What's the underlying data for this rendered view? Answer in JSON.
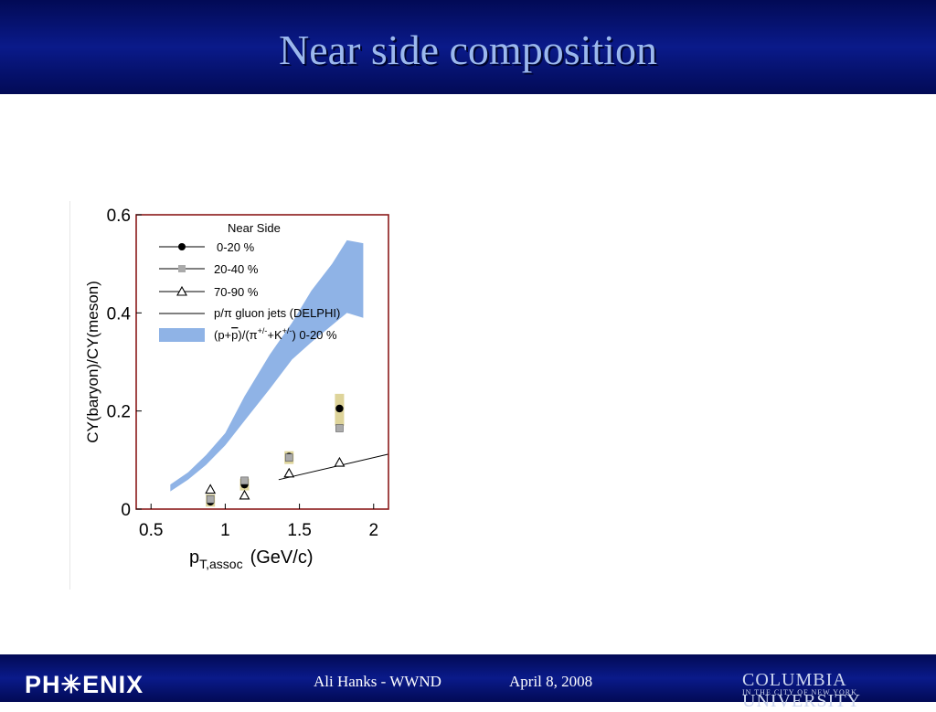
{
  "slide": {
    "title": "Near side composition",
    "footer_author": "Ali Hanks - WWND",
    "footer_date": "April 8, 2008",
    "logo_left": "PH✳ENIX",
    "logo_right": "COLUMBIA UNIVERSITY",
    "logo_right_sub": "IN THE CITY OF NEW YORK",
    "colors": {
      "bar": "#0a1a8a",
      "title_text": "#9bb8ee",
      "band": "#8fb3e6",
      "error_box": "#d8cc88",
      "frame": "#8b1a1a"
    }
  },
  "chart_data": {
    "type": "scatter",
    "title": "",
    "xlabel_main": "p",
    "xlabel_sub": "T,assoc",
    "xlabel_unit": "(GeV/c)",
    "ylabel": "CY(baryon)/CY(meson)",
    "xlim": [
      0.4,
      2.1
    ],
    "ylim": [
      0,
      0.6
    ],
    "x_ticks": [
      "0.5",
      "1",
      "1.5",
      "2"
    ],
    "y_ticks": [
      "0",
      "0.2",
      "0.4",
      "0.6"
    ],
    "legend_title": "Near Side",
    "legend_position": "top-left",
    "series": [
      {
        "name": "0-20 %",
        "marker": "filled-circle",
        "color": "#000000",
        "x": [
          0.9,
          1.13,
          1.43,
          1.77
        ],
        "y": [
          0.015,
          0.05,
          0.107,
          0.205
        ],
        "err_lo": [
          0.005,
          0.038,
          0.092,
          0.17
        ],
        "err_hi": [
          0.03,
          0.062,
          0.118,
          0.235
        ]
      },
      {
        "name": "20-40 %",
        "marker": "gray-square",
        "color": "#aaaaaa",
        "x": [
          0.9,
          1.13,
          1.43,
          1.77
        ],
        "y": [
          0.02,
          0.058,
          0.105,
          0.165
        ],
        "err_lo": [
          0.01,
          0.048,
          0.095,
          0.15
        ],
        "err_hi": [
          0.03,
          0.068,
          0.115,
          0.18
        ]
      },
      {
        "name": "70-90 %",
        "marker": "open-triangle",
        "color": "#000000",
        "x": [
          0.9,
          1.13,
          1.43,
          1.77
        ],
        "y": [
          0.04,
          0.028,
          0.073,
          0.095
        ],
        "err_lo": [
          0.03,
          0.018,
          0.058,
          0.085
        ],
        "err_hi": [
          0.05,
          0.038,
          0.088,
          0.105
        ]
      },
      {
        "name": "p/π gluon jets (DELPHI)",
        "type": "line",
        "color": "#000000",
        "x": [
          1.36,
          2.1
        ],
        "y": [
          0.06,
          0.112
        ]
      },
      {
        "name_parts": [
          "(p+",
          "p",
          ")/(π",
          "+/-",
          "+K",
          "+/-",
          ") 0-20 %"
        ],
        "type": "band",
        "color": "#8fb3e6",
        "x": [
          0.63,
          0.75,
          0.87,
          1.0,
          1.13,
          1.3,
          1.45,
          1.58,
          1.72,
          1.82,
          1.93
        ],
        "lower": [
          0.036,
          0.06,
          0.09,
          0.13,
          0.18,
          0.245,
          0.305,
          0.34,
          0.375,
          0.4,
          0.39
        ],
        "upper": [
          0.05,
          0.075,
          0.11,
          0.155,
          0.23,
          0.315,
          0.38,
          0.445,
          0.5,
          0.548,
          0.542
        ]
      }
    ]
  }
}
